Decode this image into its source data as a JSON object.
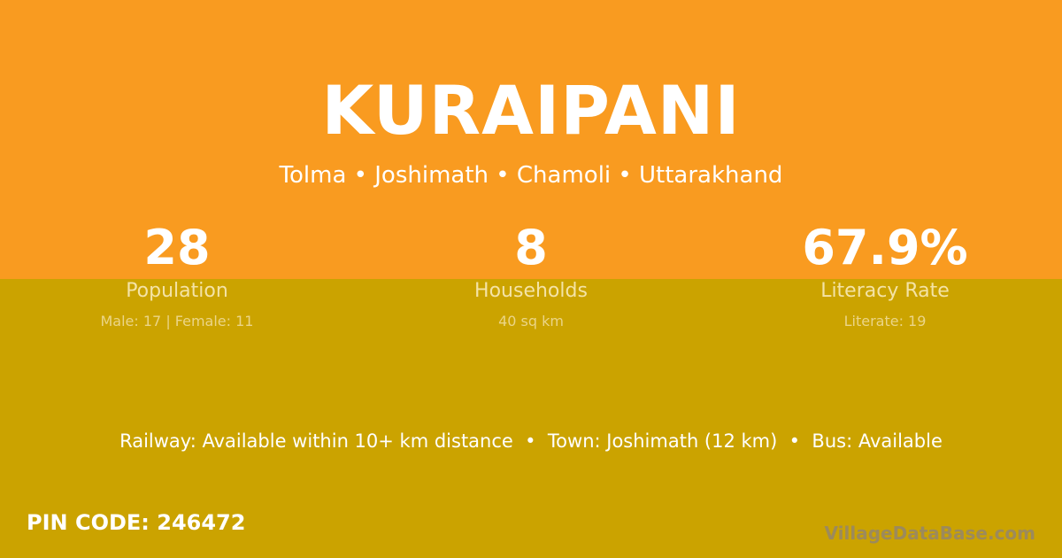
{
  "colors": {
    "top_background": "#F99B20",
    "bottom_background": "#CBA300",
    "brand_text": "#9C8A5C"
  },
  "village": {
    "name": "KURAIPANI",
    "location": "Tolma • Joshimath • Chamoli • Uttarakhand"
  },
  "stats": [
    {
      "value": "28",
      "label": "Population",
      "detail": "Male: 17 | Female: 11"
    },
    {
      "value": "8",
      "label": "Households",
      "detail": "40 sq km"
    },
    {
      "value": "67.9%",
      "label": "Literacy Rate",
      "detail": "Literate: 19"
    }
  ],
  "connectivity": "Railway: Available within 10+ km distance  •  Town: Joshimath (12 km)  •  Bus: Available",
  "pin_code": "PIN CODE: 246472",
  "brand": "VillageDataBase.com"
}
